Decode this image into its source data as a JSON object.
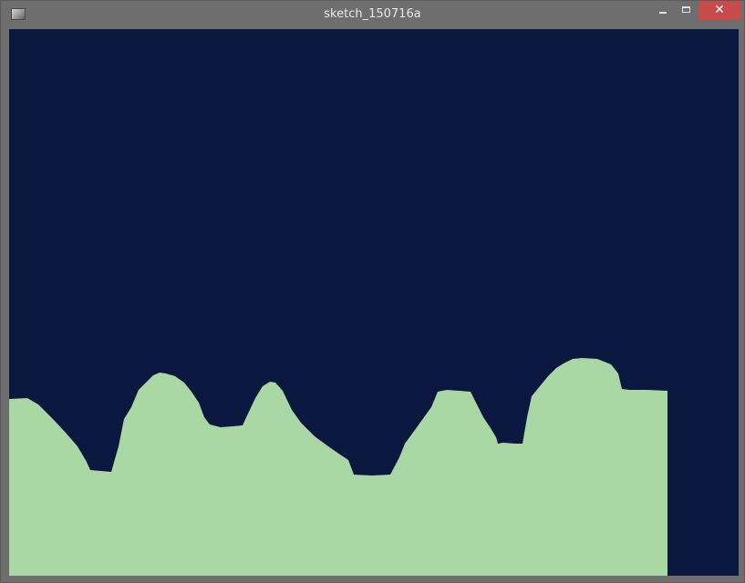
{
  "window": {
    "title": "sketch_150716a",
    "icon": "processing-app-icon",
    "controls": {
      "minimize_icon": "minimize-icon",
      "maximize_icon": "maximize-icon",
      "close_icon": "close-icon",
      "close_glyph": "✕"
    }
  },
  "sketch": {
    "background_color": "#0a173f",
    "terrain_color": "#a9d8a5",
    "titlebar_color": "#6e6e6e",
    "close_button_color": "#c74b4b"
  }
}
